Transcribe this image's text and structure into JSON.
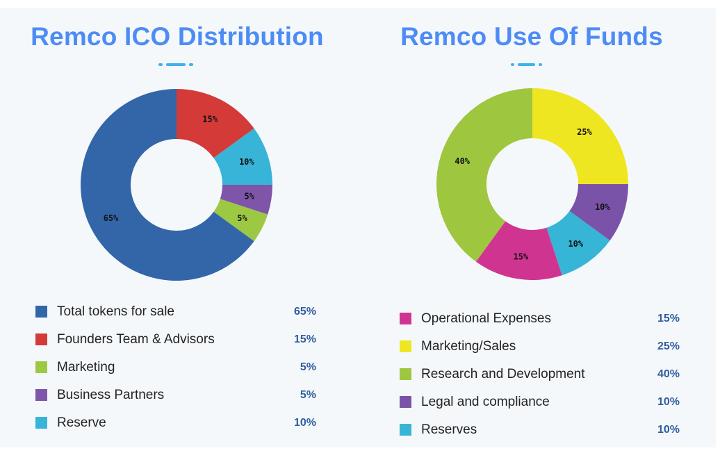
{
  "chart_data": [
    {
      "type": "pie",
      "title": "Remco ICO Distribution",
      "slices": [
        {
          "label": "Total tokens for sale",
          "value": 65,
          "value_label": "65%",
          "color": "#3366a8"
        },
        {
          "label": "Founders Team & Advisors",
          "value": 15,
          "value_label": "15%",
          "color": "#d33a38"
        },
        {
          "label": "Marketing",
          "value": 5,
          "value_label": "5%",
          "color": "#9dc843"
        },
        {
          "label": "Business Partners",
          "value": 5,
          "value_label": "5%",
          "color": "#7e55a8"
        },
        {
          "label": "Reserve",
          "value": 10,
          "value_label": "10%",
          "color": "#38b4d8"
        }
      ],
      "order_clockwise_from_top": [
        "Founders Team & Advisors",
        "Reserve",
        "Business Partners",
        "Marketing",
        "Total tokens for sale"
      ],
      "donut": true
    },
    {
      "type": "pie",
      "title": "Remco Use Of Funds",
      "slices": [
        {
          "label": "Operational Expenses",
          "value": 15,
          "value_label": "15%",
          "color": "#cf3590"
        },
        {
          "label": "Marketing/Sales",
          "value": 25,
          "value_label": "25%",
          "color": "#efe622"
        },
        {
          "label": "Research and Development",
          "value": 40,
          "value_label": "40%",
          "color": "#9fc63f"
        },
        {
          "label": "Legal and compliance",
          "value": 10,
          "value_label": "10%",
          "color": "#7a53a8"
        },
        {
          "label": "Reserves",
          "value": 10,
          "value_label": "10%",
          "color": "#36b5d6"
        }
      ],
      "order_clockwise_from_top": [
        "Marketing/Sales",
        "Legal and compliance",
        "Reserves",
        "Operational Expenses",
        "Research and Development"
      ],
      "donut": true
    }
  ]
}
